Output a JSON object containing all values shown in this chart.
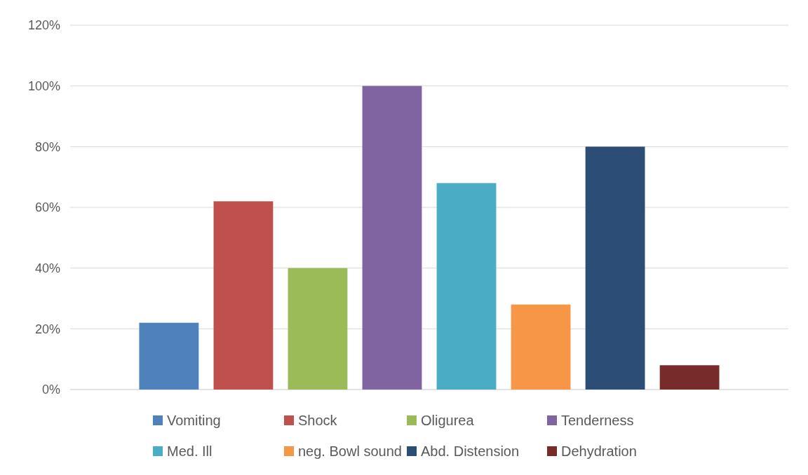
{
  "chart_data": {
    "type": "bar",
    "categories": [
      null
    ],
    "series": [
      {
        "name": "Vomiting",
        "color": "#4f81bd",
        "values": [
          22
        ]
      },
      {
        "name": "Shock",
        "color": "#c0504d",
        "values": [
          62
        ]
      },
      {
        "name": "Oligurea",
        "color": "#9bbb59",
        "values": [
          40
        ]
      },
      {
        "name": "Tenderness",
        "color": "#8064a2",
        "values": [
          100
        ]
      },
      {
        "name": "Med. Ill",
        "color": "#4bacc6",
        "values": [
          68
        ]
      },
      {
        "name": "neg. Bowl sound",
        "color": "#f79646",
        "values": [
          28
        ]
      },
      {
        "name": "Abd. Distension",
        "color": "#2c4d75",
        "values": [
          80
        ]
      },
      {
        "name": "Dehydration",
        "color": "#772c2a",
        "values": [
          8
        ]
      }
    ],
    "ylim": [
      0,
      120
    ],
    "yticks": [
      {
        "value": 0,
        "label": "0%"
      },
      {
        "value": 20,
        "label": "20%"
      },
      {
        "value": 40,
        "label": "40%"
      },
      {
        "value": 60,
        "label": "60%"
      },
      {
        "value": 80,
        "label": "80%"
      },
      {
        "value": 100,
        "label": "100%"
      },
      {
        "value": 120,
        "label": "120%"
      }
    ],
    "grid": "y",
    "legend": "bottom"
  }
}
